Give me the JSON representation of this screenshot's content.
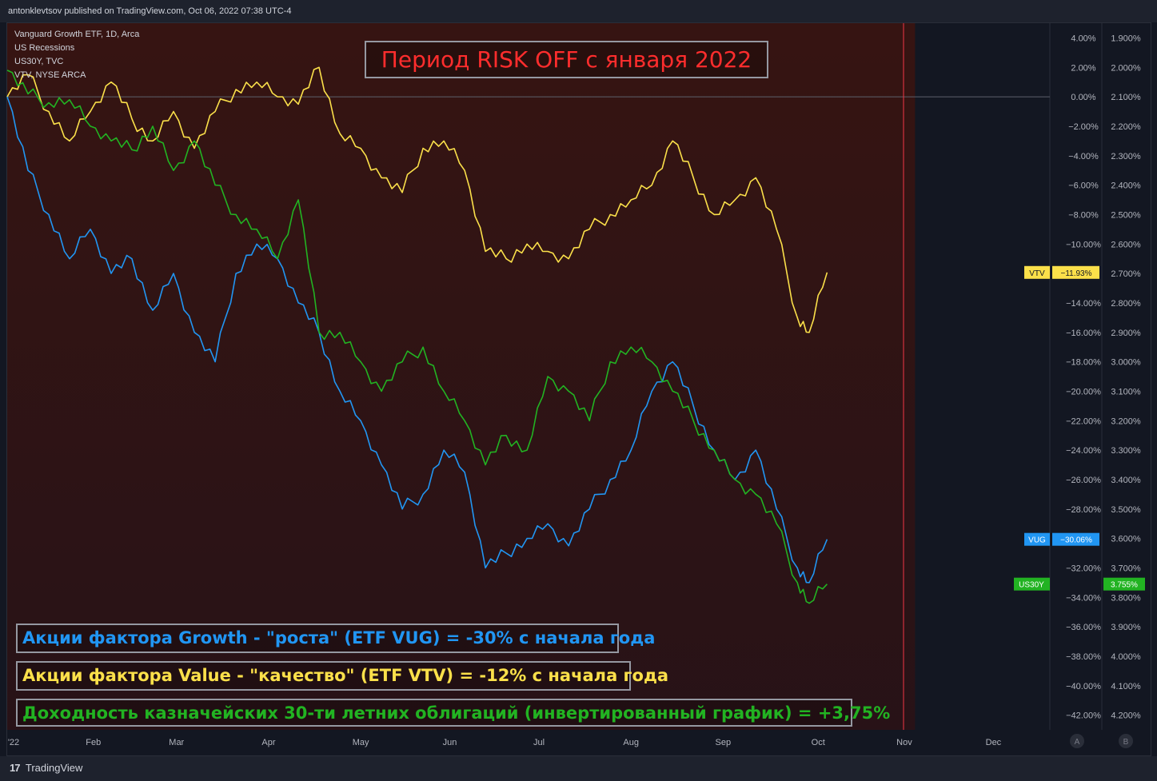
{
  "header": {
    "published_text": "antonklevtsov published on TradingView.com, Oct 06, 2022 07:38 UTC-4"
  },
  "legend": {
    "lines": [
      "Vanguard Growth ETF, 1D, Arca",
      "US Recessions",
      "US30Y, TVC",
      "VTV, NYSE ARCA"
    ]
  },
  "annotations": {
    "title": "Период RISK OFF с января 2022",
    "vug_note": "Акции фактора Growth - \"роста\" (ETF VUG) = -30% с начала года",
    "vtv_note": "Акции фактора Value - \"качество\" (ETF VTV) = -12% с начала года",
    "us30_note": "Доходность казначейских 30-ти летних облигаций (инвертированный график) = +3,75%"
  },
  "footer": {
    "brand": "TradingView",
    "brand_icon": "tradingview-logo-icon"
  },
  "colors": {
    "background": "#131722",
    "recession_shade": "#2a1414",
    "vug": "#2196f3",
    "vtv": "#fbe04a",
    "us30y": "#22b322",
    "title_text": "#ff2d2d",
    "now_line": "#f23645"
  },
  "chart_data": {
    "type": "line",
    "x_tick_labels": [
      "'22",
      "Feb",
      "Mar",
      "Apr",
      "May",
      "Jun",
      "Jul",
      "Aug",
      "Sep",
      "Oct",
      "Nov",
      "Dec"
    ],
    "left_axis": {
      "scale_buttons": [
        "A",
        "B"
      ]
    },
    "right_axis_pct": {
      "ticks": [
        4,
        2,
        0,
        -2,
        -4,
        -6,
        -8,
        -10,
        -12,
        -14,
        -16,
        -18,
        -20,
        -22,
        -24,
        -26,
        -28,
        -30,
        -32,
        -34,
        -36,
        -38,
        -40,
        -42
      ],
      "tick_labels": [
        "4.00%",
        "2.00%",
        "0.00%",
        "−2.00%",
        "−4.00%",
        "−6.00%",
        "−8.00%",
        "−10.00%",
        "−14.00%",
        "−16.00%",
        "−18.00%",
        "−20.00%",
        "−22.00%",
        "−24.00%",
        "−26.00%",
        "−28.00%",
        "−32.00%",
        "−34.00%",
        "−36.00%",
        "−38.00%",
        "−40.00%",
        "−42.00%"
      ],
      "range": [
        -43,
        5
      ]
    },
    "right_axis_yield": {
      "inverted": true,
      "tick_labels": [
        "1.900%",
        "2.000%",
        "2.100%",
        "2.200%",
        "2.300%",
        "2.400%",
        "2.500%",
        "2.600%",
        "2.700%",
        "2.800%",
        "2.900%",
        "3.000%",
        "3.100%",
        "3.200%",
        "3.300%",
        "3.400%",
        "3.500%",
        "3.600%",
        "3.700%",
        "3.800%",
        "3.900%",
        "4.000%",
        "4.100%",
        "4.200%"
      ],
      "range": [
        1.85,
        4.25
      ]
    },
    "recession_shading": {
      "from": "2022-01-03",
      "to": "2022-10-06"
    },
    "series": [
      {
        "name": "VTV",
        "axis": "pct",
        "last_label": "VTV",
        "last_value_label": "−11.93%",
        "points": [
          [
            "2022-01-03",
            0
          ],
          [
            "2022-01-10",
            1.5
          ],
          [
            "2022-01-17",
            -1
          ],
          [
            "2022-01-24",
            -3
          ],
          [
            "2022-01-31",
            -1
          ],
          [
            "2022-02-07",
            1
          ],
          [
            "2022-02-14",
            -1.5
          ],
          [
            "2022-02-21",
            -3
          ],
          [
            "2022-02-28",
            -1
          ],
          [
            "2022-03-07",
            -3.5
          ],
          [
            "2022-03-14",
            -1
          ],
          [
            "2022-03-21",
            0.5
          ],
          [
            "2022-03-28",
            1
          ],
          [
            "2022-04-04",
            0
          ],
          [
            "2022-04-11",
            -0.5
          ],
          [
            "2022-04-18",
            2
          ],
          [
            "2022-04-25",
            -2.5
          ],
          [
            "2022-05-02",
            -3.5
          ],
          [
            "2022-05-09",
            -5.5
          ],
          [
            "2022-05-16",
            -6.5
          ],
          [
            "2022-05-23",
            -3.5
          ],
          [
            "2022-05-30",
            -3
          ],
          [
            "2022-06-06",
            -5
          ],
          [
            "2022-06-13",
            -10.5
          ],
          [
            "2022-06-20",
            -11
          ],
          [
            "2022-06-27",
            -10
          ],
          [
            "2022-07-04",
            -10.5
          ],
          [
            "2022-07-11",
            -11
          ],
          [
            "2022-07-18",
            -9
          ],
          [
            "2022-07-25",
            -8
          ],
          [
            "2022-08-01",
            -7
          ],
          [
            "2022-08-08",
            -6
          ],
          [
            "2022-08-15",
            -3
          ],
          [
            "2022-08-22",
            -5.5
          ],
          [
            "2022-08-29",
            -8
          ],
          [
            "2022-09-05",
            -7
          ],
          [
            "2022-09-12",
            -5.5
          ],
          [
            "2022-09-19",
            -9
          ],
          [
            "2022-09-26",
            -15
          ],
          [
            "2022-09-30",
            -16
          ],
          [
            "2022-10-06",
            -11.93
          ]
        ]
      },
      {
        "name": "VUG",
        "axis": "pct",
        "last_label": "VUG",
        "last_value_label": "−30.06%",
        "points": [
          [
            "2022-01-03",
            0
          ],
          [
            "2022-01-10",
            -5
          ],
          [
            "2022-01-17",
            -8
          ],
          [
            "2022-01-24",
            -11
          ],
          [
            "2022-01-31",
            -9
          ],
          [
            "2022-02-07",
            -12
          ],
          [
            "2022-02-14",
            -11
          ],
          [
            "2022-02-21",
            -14.5
          ],
          [
            "2022-02-28",
            -12
          ],
          [
            "2022-03-07",
            -16
          ],
          [
            "2022-03-14",
            -18
          ],
          [
            "2022-03-21",
            -12
          ],
          [
            "2022-03-28",
            -10
          ],
          [
            "2022-04-04",
            -11
          ],
          [
            "2022-04-11",
            -14
          ],
          [
            "2022-04-18",
            -16
          ],
          [
            "2022-04-25",
            -20
          ],
          [
            "2022-05-02",
            -22
          ],
          [
            "2022-05-09",
            -25
          ],
          [
            "2022-05-16",
            -28
          ],
          [
            "2022-05-23",
            -27
          ],
          [
            "2022-05-30",
            -24
          ],
          [
            "2022-06-06",
            -25.5
          ],
          [
            "2022-06-13",
            -32
          ],
          [
            "2022-06-20",
            -31
          ],
          [
            "2022-06-27",
            -30
          ],
          [
            "2022-07-04",
            -29
          ],
          [
            "2022-07-11",
            -30.5
          ],
          [
            "2022-07-18",
            -28
          ],
          [
            "2022-07-25",
            -26
          ],
          [
            "2022-08-01",
            -24
          ],
          [
            "2022-08-08",
            -20
          ],
          [
            "2022-08-15",
            -18
          ],
          [
            "2022-08-22",
            -21
          ],
          [
            "2022-08-29",
            -24
          ],
          [
            "2022-09-05",
            -26
          ],
          [
            "2022-09-12",
            -24
          ],
          [
            "2022-09-19",
            -28
          ],
          [
            "2022-09-26",
            -32
          ],
          [
            "2022-09-30",
            -33
          ],
          [
            "2022-10-06",
            -30.06
          ]
        ]
      },
      {
        "name": "US30Y",
        "axis": "yield",
        "last_label": "US30Y",
        "last_value_label": "3.755%",
        "points": [
          [
            "2022-01-03",
            2.01
          ],
          [
            "2022-01-10",
            2.09
          ],
          [
            "2022-01-17",
            2.12
          ],
          [
            "2022-01-24",
            2.11
          ],
          [
            "2022-01-31",
            2.2
          ],
          [
            "2022-02-07",
            2.25
          ],
          [
            "2022-02-14",
            2.28
          ],
          [
            "2022-02-21",
            2.2
          ],
          [
            "2022-02-28",
            2.35
          ],
          [
            "2022-03-07",
            2.25
          ],
          [
            "2022-03-14",
            2.4
          ],
          [
            "2022-03-21",
            2.5
          ],
          [
            "2022-03-28",
            2.55
          ],
          [
            "2022-04-04",
            2.65
          ],
          [
            "2022-04-11",
            2.45
          ],
          [
            "2022-04-18",
            2.9
          ],
          [
            "2022-04-25",
            2.9
          ],
          [
            "2022-05-02",
            3.0
          ],
          [
            "2022-05-09",
            3.1
          ],
          [
            "2022-05-16",
            3.0
          ],
          [
            "2022-05-23",
            2.95
          ],
          [
            "2022-05-30",
            3.1
          ],
          [
            "2022-06-06",
            3.2
          ],
          [
            "2022-06-13",
            3.35
          ],
          [
            "2022-06-20",
            3.25
          ],
          [
            "2022-06-27",
            3.3
          ],
          [
            "2022-07-04",
            3.05
          ],
          [
            "2022-07-11",
            3.1
          ],
          [
            "2022-07-18",
            3.2
          ],
          [
            "2022-07-25",
            3.0
          ],
          [
            "2022-08-01",
            2.95
          ],
          [
            "2022-08-08",
            3.0
          ],
          [
            "2022-08-15",
            3.1
          ],
          [
            "2022-08-22",
            3.2
          ],
          [
            "2022-08-29",
            3.3
          ],
          [
            "2022-09-05",
            3.4
          ],
          [
            "2022-09-12",
            3.45
          ],
          [
            "2022-09-19",
            3.55
          ],
          [
            "2022-09-26",
            3.75
          ],
          [
            "2022-09-30",
            3.82
          ],
          [
            "2022-10-06",
            3.755
          ]
        ]
      }
    ]
  }
}
